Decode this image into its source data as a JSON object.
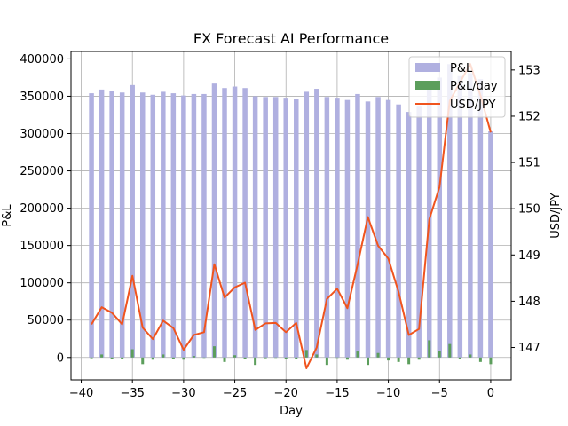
{
  "chart_data": {
    "type": "bar",
    "title": "FX Forecast AI Performance",
    "xlabel": "Day",
    "ylabel": "P&L",
    "y2label": "USD/JPY",
    "xlim": [
      -41,
      2
    ],
    "ylim": [
      -30000,
      410000
    ],
    "y2lim": [
      146.3,
      153.4
    ],
    "x_ticks": [
      -40,
      -35,
      -30,
      -25,
      -20,
      -15,
      -10,
      -5,
      0
    ],
    "y_ticks": [
      0,
      50000,
      100000,
      150000,
      200000,
      250000,
      300000,
      350000,
      400000
    ],
    "y2_ticks": [
      147,
      148,
      149,
      150,
      151,
      152,
      153
    ],
    "grid": true,
    "legend_position": "top-right",
    "x": [
      -39,
      -38,
      -37,
      -36,
      -35,
      -34,
      -33,
      -32,
      -31,
      -30,
      -29,
      -28,
      -27,
      -26,
      -25,
      -24,
      -23,
      -22,
      -21,
      -20,
      -19,
      -18,
      -17,
      -16,
      -15,
      -14,
      -13,
      -12,
      -11,
      -10,
      -9,
      -8,
      -7,
      -6,
      -5,
      -4,
      -3,
      -2,
      -1,
      0
    ],
    "series": [
      {
        "name": "P&L",
        "kind": "bar",
        "axis": "left",
        "color": "#b0b0e0",
        "values": [
          354000,
          359000,
          357000,
          355000,
          365000,
          355000,
          352000,
          356000,
          354000,
          351000,
          353000,
          353000,
          367000,
          361000,
          363000,
          361000,
          350000,
          349000,
          349000,
          348000,
          346000,
          356000,
          360000,
          349000,
          348000,
          345000,
          353000,
          343000,
          349000,
          345000,
          339000,
          329000,
          336000,
          366000,
          375000,
          393000,
          377000,
          381000,
          373000,
          303000
        ]
      },
      {
        "name": "P&L/day",
        "kind": "bar",
        "axis": "left",
        "color": "#5c9e5c",
        "values": [
          -1000,
          4000,
          -1500,
          -2000,
          11000,
          -9000,
          -3000,
          4000,
          -2000,
          -3000,
          2000,
          0,
          15000,
          -6000,
          3000,
          -2000,
          -10000,
          -1000,
          0,
          -2000,
          -2000,
          10000,
          4000,
          -10000,
          0,
          -3000,
          8000,
          -10000,
          6000,
          -4000,
          -6000,
          -9000,
          -3000,
          23000,
          9000,
          18000,
          -2000,
          4000,
          -6000,
          -9000
        ]
      },
      {
        "name": "USD/JPY",
        "kind": "line",
        "axis": "right",
        "color": "#f0541e",
        "values": [
          147.5,
          147.87,
          147.75,
          147.5,
          148.55,
          147.43,
          147.18,
          147.58,
          147.42,
          146.95,
          147.27,
          147.33,
          148.8,
          148.08,
          148.3,
          148.4,
          147.38,
          147.52,
          147.53,
          147.33,
          147.53,
          146.55,
          147.0,
          148.05,
          148.27,
          147.85,
          148.8,
          149.82,
          149.2,
          148.92,
          148.2,
          147.27,
          147.4,
          149.77,
          150.47,
          152.33,
          152.73,
          153.13,
          152.45,
          151.65
        ]
      }
    ]
  }
}
